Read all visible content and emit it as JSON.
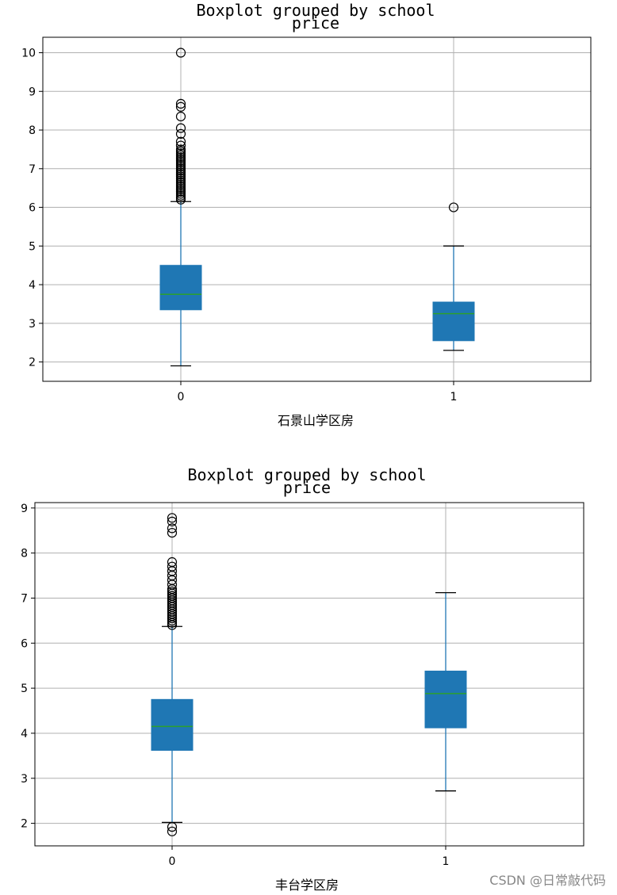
{
  "watermark": "CSDN @日常敲代码",
  "chart_data": [
    {
      "type": "boxplot",
      "title": "Boxplot grouped by school",
      "subtitle": "price",
      "xlabel": "石景山学区房",
      "categories": [
        "0",
        "1"
      ],
      "ylim": [
        1.5,
        10.4
      ],
      "yticks": [
        2,
        3,
        4,
        5,
        6,
        7,
        8,
        9,
        10
      ],
      "grid": true,
      "box_color": "#1f77b4",
      "median_color": "#2ca02c",
      "boxes": [
        {
          "category": "0",
          "whislo": 1.9,
          "q1": 3.35,
          "median": 3.75,
          "q3": 4.5,
          "whishi": 6.15,
          "fliers": [
            6.2,
            6.25,
            6.3,
            6.35,
            6.4,
            6.45,
            6.5,
            6.55,
            6.6,
            6.65,
            6.7,
            6.75,
            6.8,
            6.85,
            6.9,
            6.95,
            7.0,
            7.05,
            7.1,
            7.15,
            7.2,
            7.25,
            7.3,
            7.35,
            7.4,
            7.45,
            7.5,
            7.6,
            7.7,
            7.9,
            8.05,
            8.35,
            8.6,
            8.68,
            10.0
          ]
        },
        {
          "category": "1",
          "whislo": 2.3,
          "q1": 2.55,
          "median": 3.25,
          "q3": 3.55,
          "whishi": 5.0,
          "fliers": [
            6.0
          ]
        }
      ]
    },
    {
      "type": "boxplot",
      "title": "Boxplot grouped by school",
      "subtitle": "price",
      "xlabel": "丰台学区房",
      "categories": [
        "0",
        "1"
      ],
      "ylim": [
        1.5,
        9.12
      ],
      "yticks": [
        2,
        3,
        4,
        5,
        6,
        7,
        8,
        9
      ],
      "grid": true,
      "box_color": "#1f77b4",
      "median_color": "#2ca02c",
      "boxes": [
        {
          "category": "0",
          "whislo": 2.02,
          "q1": 3.62,
          "median": 4.15,
          "q3": 4.75,
          "whishi": 6.37,
          "fliers": [
            1.82,
            1.92,
            6.4,
            6.45,
            6.5,
            6.55,
            6.6,
            6.65,
            6.7,
            6.75,
            6.8,
            6.85,
            6.9,
            6.95,
            7.0,
            7.05,
            7.1,
            7.15,
            7.2,
            7.3,
            7.4,
            7.5,
            7.6,
            7.7,
            7.8,
            8.45,
            8.55,
            8.7,
            8.78
          ]
        },
        {
          "category": "1",
          "whislo": 2.72,
          "q1": 4.12,
          "median": 4.88,
          "q3": 5.38,
          "whishi": 7.12,
          "fliers": []
        }
      ]
    }
  ]
}
